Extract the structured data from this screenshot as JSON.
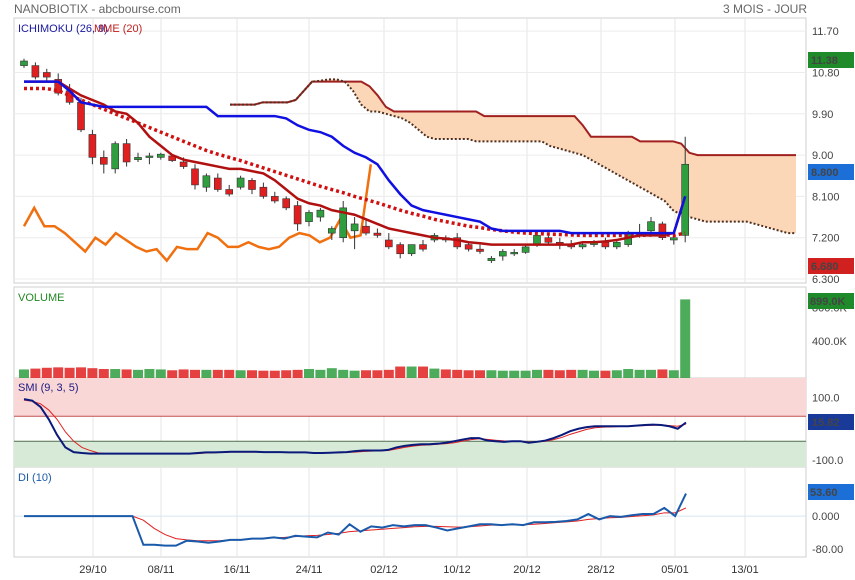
{
  "header": {
    "title": "NANOBIOTIX - abcbourse.com",
    "period": "3 MOIS - JOUR"
  },
  "colors": {
    "up": "#2e9e3e",
    "down": "#e02020",
    "kijun": "#1010e0",
    "tenkan": "#b01010",
    "mme": "#d01010",
    "chikou": "#f07010",
    "cloud": "#fbd7b8",
    "smi": "#0a1a7a",
    "di": "#1a5aaa",
    "signal": "#e02020",
    "overbought": "#fad7d7",
    "oversold": "#d7ead7"
  },
  "chart_data": [
    {
      "type": "candlestick",
      "title": "ICHIMOKU (26, 9)",
      "title2": "MME (20)",
      "ylim": [
        6.3,
        11.9
      ],
      "yticks": [
        "11.70",
        "10.80",
        "9.90",
        "9.00",
        "8.100",
        "7.200",
        "6.300"
      ],
      "price_tags": [
        "11.38",
        "8.800",
        "6.680"
      ],
      "x_labels": [
        "29/10",
        "08/11",
        "16/11",
        "24/11",
        "02/12",
        "10/12",
        "20/12",
        "28/12",
        "05/01",
        "13/01"
      ],
      "candles": [
        [
          10.95,
          11.1,
          10.9,
          11.05
        ],
        [
          10.95,
          11.02,
          10.65,
          10.7
        ],
        [
          10.8,
          10.88,
          10.6,
          10.7
        ],
        [
          10.65,
          10.78,
          10.3,
          10.35
        ],
        [
          10.4,
          10.55,
          10.1,
          10.15
        ],
        [
          10.15,
          10.25,
          9.5,
          9.55
        ],
        [
          9.45,
          9.55,
          8.8,
          8.95
        ],
        [
          8.95,
          9.1,
          8.6,
          8.8
        ],
        [
          8.7,
          9.3,
          8.6,
          9.25
        ],
        [
          9.25,
          9.35,
          8.75,
          8.85
        ],
        [
          8.9,
          9.05,
          8.85,
          8.95
        ],
        [
          8.95,
          9.05,
          8.8,
          8.98
        ],
        [
          8.95,
          9.05,
          8.9,
          9.02
        ],
        [
          8.98,
          9.02,
          8.85,
          8.88
        ],
        [
          8.85,
          8.95,
          8.7,
          8.75
        ],
        [
          8.7,
          8.8,
          8.25,
          8.35
        ],
        [
          8.3,
          8.6,
          8.2,
          8.55
        ],
        [
          8.5,
          8.6,
          8.2,
          8.25
        ],
        [
          8.25,
          8.35,
          8.1,
          8.15
        ],
        [
          8.3,
          8.55,
          8.25,
          8.5
        ],
        [
          8.45,
          8.5,
          8.15,
          8.25
        ],
        [
          8.3,
          8.4,
          8.05,
          8.1
        ],
        [
          8.1,
          8.2,
          7.95,
          8.0
        ],
        [
          8.05,
          8.1,
          7.8,
          7.85
        ],
        [
          7.9,
          8.0,
          7.35,
          7.5
        ],
        [
          7.55,
          7.8,
          7.45,
          7.75
        ],
        [
          7.65,
          7.85,
          7.55,
          7.8
        ],
        [
          7.3,
          7.45,
          7.15,
          7.4
        ],
        [
          7.2,
          8.0,
          7.1,
          7.85
        ],
        [
          7.35,
          7.65,
          6.95,
          7.5
        ],
        [
          7.45,
          7.6,
          7.25,
          7.3
        ],
        [
          7.3,
          7.4,
          7.2,
          7.25
        ],
        [
          7.15,
          7.3,
          6.95,
          7.0
        ],
        [
          7.05,
          7.1,
          6.75,
          6.85
        ],
        [
          6.85,
          7.05,
          6.8,
          7.05
        ],
        [
          7.05,
          7.15,
          6.9,
          6.95
        ],
        [
          7.15,
          7.3,
          7.1,
          7.25
        ],
        [
          7.2,
          7.25,
          7.1,
          7.15
        ],
        [
          7.2,
          7.3,
          6.95,
          7.0
        ],
        [
          7.05,
          7.1,
          6.9,
          6.95
        ],
        [
          6.95,
          7.05,
          6.85,
          6.9
        ],
        [
          6.7,
          6.8,
          6.65,
          6.75
        ],
        [
          6.8,
          6.95,
          6.7,
          6.9
        ],
        [
          6.85,
          6.95,
          6.8,
          6.88
        ],
        [
          6.88,
          7.05,
          6.85,
          7.0
        ],
        [
          7.05,
          7.3,
          7.0,
          7.25
        ],
        [
          7.2,
          7.3,
          7.05,
          7.1
        ],
        [
          7.1,
          7.2,
          6.95,
          7.05
        ],
        [
          7.05,
          7.15,
          6.95,
          7.0
        ],
        [
          7.0,
          7.1,
          6.95,
          7.05
        ],
        [
          7.05,
          7.15,
          7.0,
          7.1
        ],
        [
          7.1,
          7.2,
          6.95,
          7.0
        ],
        [
          7.0,
          7.15,
          6.95,
          7.1
        ],
        [
          7.05,
          7.35,
          7.0,
          7.3
        ],
        [
          7.25,
          7.5,
          7.2,
          7.3
        ],
        [
          7.35,
          7.65,
          7.3,
          7.55
        ],
        [
          7.5,
          7.55,
          7.15,
          7.2
        ],
        [
          7.15,
          7.35,
          7.05,
          7.2
        ],
        [
          7.25,
          9.4,
          7.1,
          8.8
        ]
      ],
      "series": [
        {
          "name": "kijun",
          "values": [
            10.6,
            10.6,
            10.6,
            10.6,
            10.4,
            10.15,
            10.1,
            10.05,
            10.05,
            10.05,
            10.05,
            10.05,
            10.05,
            10.05,
            10.05,
            10.05,
            10.05,
            9.85,
            9.85,
            9.85,
            9.85,
            9.85,
            9.85,
            9.8,
            9.65,
            9.55,
            9.5,
            9.4,
            9.2,
            9.05,
            8.95,
            8.8,
            8.45,
            8.15,
            7.9,
            7.8,
            7.75,
            7.7,
            7.65,
            7.6,
            7.55,
            7.4,
            7.35,
            7.35,
            7.35,
            7.35,
            7.35,
            7.35,
            7.3,
            7.3,
            7.3,
            7.3,
            7.3,
            7.3,
            7.3,
            7.3,
            7.3,
            7.3,
            8.1
          ]
        },
        {
          "name": "tenkan",
          "values": [
            10.6,
            10.6,
            10.6,
            10.6,
            10.45,
            10.3,
            10.2,
            10.1,
            9.95,
            9.9,
            9.7,
            9.4,
            9.2,
            9.0,
            8.9,
            8.85,
            8.8,
            8.75,
            8.7,
            8.7,
            8.65,
            8.6,
            8.45,
            8.25,
            8.05,
            7.95,
            7.9,
            7.8,
            7.75,
            7.7,
            7.6,
            7.5,
            7.4,
            7.35,
            7.3,
            7.25,
            7.2,
            7.18,
            7.15,
            7.1,
            7.08,
            7.05,
            7.05,
            7.05,
            7.05,
            7.05,
            7.05,
            7.05,
            7.05,
            7.1,
            7.1,
            7.12,
            7.15,
            7.2,
            7.25,
            7.25,
            7.25,
            7.3,
            8.1
          ]
        },
        {
          "name": "mme",
          "values": [
            10.45,
            10.45,
            10.45,
            10.4,
            10.3,
            10.2,
            10.1,
            10.0,
            9.9,
            9.8,
            9.7,
            9.6,
            9.5,
            9.4,
            9.3,
            9.2,
            9.1,
            9.02,
            8.95,
            8.88,
            8.8,
            8.72,
            8.64,
            8.56,
            8.48,
            8.4,
            8.32,
            8.25,
            8.18,
            8.1,
            8.03,
            7.96,
            7.88,
            7.8,
            7.73,
            7.67,
            7.6,
            7.55,
            7.5,
            7.45,
            7.42,
            7.38,
            7.35,
            7.32,
            7.3,
            7.29,
            7.28,
            7.27,
            7.26,
            7.25,
            7.25,
            7.25,
            7.25,
            7.25,
            7.25,
            7.26,
            7.27,
            7.25,
            7.3
          ]
        },
        {
          "name": "chikou",
          "values": [
            7.45,
            7.85,
            7.45,
            7.45,
            7.3,
            7.1,
            6.9,
            7.2,
            7.05,
            7.3,
            7.15,
            7.0,
            6.9,
            6.95,
            6.7,
            7.0,
            6.95,
            6.95,
            7.3,
            7.2,
            7.0,
            7.0,
            7.1,
            7.0,
            6.95,
            7.0,
            7.2,
            7.3,
            7.25,
            7.1,
            7.2,
            7.6,
            7.2,
            7.25,
            8.8
          ]
        },
        {
          "name": "span_a",
          "values": [
            10.1,
            10.1,
            10.1,
            10.1,
            10.15,
            10.15,
            10.15,
            10.15,
            10.2,
            10.4,
            10.6,
            10.6,
            10.6,
            10.6,
            10.6,
            10.6,
            10.6,
            10.5,
            10.3,
            10.05,
            9.95,
            9.95,
            9.95,
            9.95,
            9.95,
            9.95,
            9.95,
            9.95,
            9.95,
            9.95,
            9.95,
            9.85,
            9.85,
            9.85,
            9.85,
            9.85,
            9.85,
            9.85,
            9.85,
            9.85,
            9.85,
            9.85,
            9.85,
            9.65,
            9.4,
            9.4,
            9.4,
            9.4,
            9.4,
            9.4,
            9.3,
            9.3,
            9.3,
            9.3,
            9.3,
            9.25,
            9.05,
            9.0,
            9.0,
            9.0,
            9.0,
            9.0,
            9.0,
            9.0,
            9.0,
            9.0,
            9.0,
            9.0,
            9.0,
            9.0
          ]
        },
        {
          "name": "span_b",
          "values": [
            10.1,
            10.1,
            10.1,
            10.1,
            10.15,
            10.15,
            10.15,
            10.15,
            10.2,
            10.4,
            10.6,
            10.62,
            10.65,
            10.65,
            10.6,
            10.4,
            10.1,
            9.95,
            9.95,
            9.9,
            9.85,
            9.8,
            9.7,
            9.55,
            9.4,
            9.35,
            9.35,
            9.35,
            9.35,
            9.35,
            9.3,
            9.3,
            9.3,
            9.3,
            9.3,
            9.3,
            9.3,
            9.3,
            9.3,
            9.2,
            9.15,
            9.1,
            9.05,
            9.0,
            8.9,
            8.8,
            8.7,
            8.6,
            8.5,
            8.4,
            8.3,
            8.2,
            8.1,
            8.0,
            7.8,
            7.7,
            7.65,
            7.6,
            7.55,
            7.55,
            7.55,
            7.55,
            7.55,
            7.55,
            7.5,
            7.45,
            7.4,
            7.35,
            7.3,
            7.3
          ]
        }
      ]
    },
    {
      "type": "bar",
      "title": "VOLUME",
      "ylim": [
        0,
        1000
      ],
      "yticks": [
        "800.0K",
        "400.0K"
      ],
      "price_tag": "899.0K",
      "values": [
        55,
        65,
        75,
        80,
        75,
        80,
        70,
        60,
        60,
        55,
        50,
        60,
        55,
        45,
        55,
        50,
        50,
        50,
        50,
        45,
        45,
        40,
        40,
        45,
        50,
        60,
        50,
        70,
        50,
        40,
        45,
        45,
        50,
        90,
        90,
        90,
        65,
        55,
        50,
        45,
        45,
        45,
        40,
        40,
        40,
        50,
        50,
        45,
        50,
        50,
        40,
        40,
        45,
        60,
        50,
        50,
        55,
        45,
        899
      ]
    },
    {
      "type": "line",
      "title": "SMI (9, 3, 5)",
      "ylim": [
        -110,
        150
      ],
      "yticks": [
        "100.0",
        "-100.0"
      ],
      "price_tag": "15.82",
      "series": [
        {
          "name": "smi",
          "values": [
            95,
            90,
            70,
            30,
            -20,
            -60,
            -75,
            -78,
            -80,
            -80,
            -80,
            -80,
            -80,
            -80,
            -80,
            -80,
            -80,
            -80,
            -80,
            -80,
            -80,
            -78,
            -76,
            -76,
            -75,
            -74,
            -74,
            -74,
            -74,
            -75,
            -75,
            -75,
            -76,
            -76,
            -76,
            -78,
            -78,
            -77,
            -76,
            -75,
            -72,
            -70,
            -70,
            -70,
            -68,
            -60,
            -55,
            -52,
            -50,
            -50,
            -48,
            -45,
            -40,
            -35,
            -30,
            -30,
            -38,
            -40,
            -42,
            -40,
            -40,
            -45,
            -42,
            -38,
            -30,
            -20,
            -8,
            0,
            5,
            8,
            8,
            8,
            8,
            8,
            10,
            12,
            13,
            12,
            8,
            0,
            20
          ]
        },
        {
          "name": "signal",
          "values": [
            92,
            88,
            80,
            60,
            30,
            -10,
            -40,
            -60,
            -70,
            -78,
            -80,
            -80,
            -80,
            -80,
            -80,
            -80,
            -80,
            -80,
            -80,
            -80,
            -80,
            -80,
            -78,
            -77,
            -76,
            -75,
            -75,
            -75,
            -75,
            -75,
            -75,
            -75,
            -76,
            -76,
            -76,
            -77,
            -78,
            -78,
            -77,
            -76,
            -75,
            -73,
            -72,
            -71,
            -70,
            -65,
            -60,
            -56,
            -53,
            -52,
            -50,
            -48,
            -45,
            -40,
            -35,
            -32,
            -34,
            -37,
            -39,
            -40,
            -40,
            -42,
            -42,
            -40,
            -35,
            -28,
            -18,
            -10,
            -2,
            3,
            5,
            6,
            7,
            8,
            9,
            10,
            11,
            12,
            10,
            8,
            15
          ]
        }
      ]
    },
    {
      "type": "line",
      "title": "DI (10)",
      "ylim": [
        -90,
        110
      ],
      "yticks": [
        "0.000",
        "-80.00"
      ],
      "price_tag": "53.60",
      "series": [
        {
          "name": "di",
          "values": [
            0,
            0,
            0,
            0,
            0,
            0,
            0,
            0,
            0,
            0,
            0,
            -70,
            -70,
            -72,
            -72,
            -60,
            -62,
            -65,
            -62,
            -58,
            -58,
            -55,
            -55,
            -52,
            -55,
            -48,
            -50,
            -52,
            -40,
            -45,
            -20,
            -38,
            -25,
            -28,
            -22,
            -25,
            -22,
            -22,
            -28,
            -35,
            -30,
            -25,
            -20,
            -20,
            -22,
            -20,
            -22,
            -15,
            -15,
            -14,
            -12,
            -8,
            5,
            -8,
            0,
            -2,
            2,
            5,
            5,
            20,
            0,
            55
          ]
        },
        {
          "name": "signal",
          "values": [
            0,
            0,
            0,
            0,
            0,
            0,
            0,
            0,
            0,
            0,
            0,
            -10,
            -30,
            -45,
            -55,
            -58,
            -60,
            -60,
            -60,
            -58,
            -57,
            -56,
            -54,
            -53,
            -52,
            -50,
            -48,
            -47,
            -45,
            -42,
            -38,
            -36,
            -34,
            -32,
            -30,
            -28,
            -26,
            -25,
            -25,
            -26,
            -27,
            -26,
            -24,
            -22,
            -22,
            -21,
            -21,
            -20,
            -18,
            -16,
            -14,
            -12,
            -8,
            -6,
            -4,
            -3,
            -1,
            1,
            3,
            8,
            8,
            20
          ]
        }
      ]
    }
  ]
}
